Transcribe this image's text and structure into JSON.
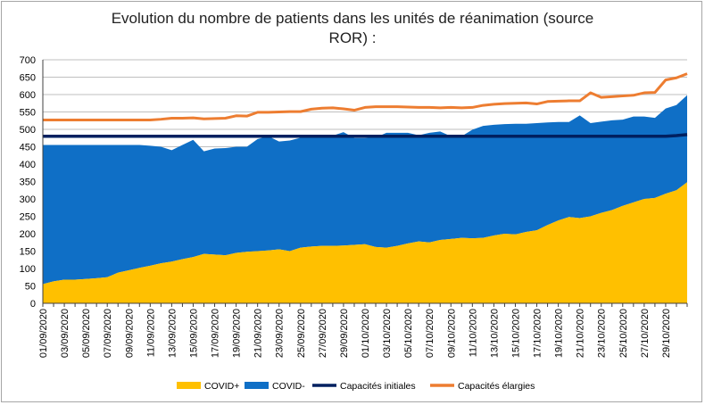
{
  "title_lines": [
    "Evolution du nombre de patients dans les unités de réanimation (source",
    "ROR) :"
  ],
  "colors": {
    "covid_plus": "#FFC000",
    "covid_minus": "#0F6FC6",
    "capacites_initiales": "#002060",
    "capacites_elargies": "#ED7D31",
    "grid": "#bfbfbf",
    "axis_text": "#000000"
  },
  "chart_data": {
    "type": "area",
    "title": "Evolution du nombre de patients dans les unités de réanimation (source ROR) :",
    "xlabel": "",
    "ylabel": "",
    "ylim": [
      0,
      700
    ],
    "yticks": [
      0,
      50,
      100,
      150,
      200,
      250,
      300,
      350,
      400,
      450,
      500,
      550,
      600,
      650,
      700
    ],
    "grid": true,
    "legend_position": "bottom",
    "x": [
      "01/09/2020",
      "02/09/2020",
      "03/09/2020",
      "04/09/2020",
      "05/09/2020",
      "06/09/2020",
      "07/09/2020",
      "08/09/2020",
      "09/09/2020",
      "10/09/2020",
      "11/09/2020",
      "12/09/2020",
      "13/09/2020",
      "14/09/2020",
      "15/09/2020",
      "16/09/2020",
      "17/09/2020",
      "18/09/2020",
      "19/09/2020",
      "20/09/2020",
      "21/09/2020",
      "22/09/2020",
      "23/09/2020",
      "24/09/2020",
      "25/09/2020",
      "26/09/2020",
      "27/09/2020",
      "28/09/2020",
      "29/09/2020",
      "30/09/2020",
      "01/10/2020",
      "02/10/2020",
      "03/10/2020",
      "04/10/2020",
      "05/10/2020",
      "06/10/2020",
      "07/10/2020",
      "08/10/2020",
      "09/10/2020",
      "10/10/2020",
      "11/10/2020",
      "12/10/2020",
      "13/10/2020",
      "14/10/2020",
      "15/10/2020",
      "16/10/2020",
      "17/10/2020",
      "18/10/2020",
      "19/10/2020",
      "20/10/2020",
      "21/10/2020",
      "22/10/2020",
      "23/10/2020",
      "24/10/2020",
      "25/10/2020",
      "26/10/2020",
      "27/10/2020",
      "28/10/2020",
      "29/10/2020",
      "30/10/2020",
      "31/10/2020"
    ],
    "x_tick_labels": [
      "01/09/2020",
      "03/09/2020",
      "05/09/2020",
      "07/09/2020",
      "09/09/2020",
      "11/09/2020",
      "13/09/2020",
      "15/09/2020",
      "17/09/2020",
      "19/09/2020",
      "21/09/2020",
      "23/09/2020",
      "25/09/2020",
      "27/09/2020",
      "29/09/2020",
      "01/10/2020",
      "03/10/2020",
      "05/10/2020",
      "07/10/2020",
      "09/10/2020",
      "11/10/2020",
      "13/10/2020",
      "15/10/2020",
      "17/10/2020",
      "19/10/2020",
      "21/10/2020",
      "23/10/2020",
      "25/10/2020",
      "27/10/2020",
      "29/10/2020"
    ],
    "series": [
      {
        "name": "COVID+",
        "kind": "stacked-area",
        "color": "#FFC000",
        "values": [
          55,
          63,
          68,
          68,
          70,
          72,
          75,
          88,
          95,
          102,
          108,
          115,
          120,
          127,
          133,
          142,
          140,
          138,
          145,
          148,
          150,
          152,
          155,
          150,
          160,
          163,
          165,
          165,
          166,
          168,
          170,
          162,
          160,
          165,
          172,
          178,
          175,
          182,
          185,
          188,
          187,
          188,
          195,
          200,
          198,
          205,
          210,
          225,
          238,
          248,
          245,
          250,
          260,
          268,
          280,
          290,
          300,
          303,
          315,
          325,
          348
        ]
      },
      {
        "name": "COVID-",
        "kind": "stacked-area",
        "color": "#0F6FC6",
        "values": [
          400,
          392,
          387,
          387,
          385,
          383,
          380,
          367,
          360,
          353,
          345,
          335,
          320,
          328,
          337,
          295,
          305,
          308,
          305,
          302,
          322,
          328,
          310,
          318,
          316,
          315,
          315,
          317,
          326,
          307,
          305,
          315,
          330,
          325,
          318,
          305,
          315,
          312,
          295,
          292,
          312,
          322,
          318,
          315,
          318,
          311,
          308,
          295,
          283,
          273,
          295,
          268,
          262,
          258,
          248,
          247,
          237,
          230,
          245,
          245,
          250
        ]
      },
      {
        "name": "Capacités initiales",
        "kind": "line",
        "color": "#002060",
        "values": [
          480,
          480,
          480,
          480,
          480,
          480,
          480,
          480,
          480,
          480,
          480,
          480,
          480,
          480,
          480,
          480,
          480,
          480,
          480,
          480,
          480,
          480,
          480,
          480,
          480,
          480,
          480,
          480,
          480,
          480,
          480,
          480,
          480,
          480,
          480,
          480,
          480,
          480,
          480,
          480,
          480,
          480,
          480,
          480,
          480,
          480,
          480,
          480,
          480,
          480,
          480,
          480,
          480,
          480,
          480,
          480,
          480,
          480,
          480,
          482,
          485
        ]
      },
      {
        "name": "Capacités élargies",
        "kind": "line",
        "color": "#ED7D31",
        "values": [
          527,
          527,
          527,
          527,
          527,
          527,
          527,
          527,
          527,
          527,
          527,
          529,
          532,
          532,
          533,
          530,
          531,
          532,
          539,
          538,
          549,
          549,
          550,
          551,
          551,
          558,
          561,
          562,
          559,
          555,
          563,
          565,
          565,
          565,
          564,
          563,
          563,
          562,
          563,
          562,
          563,
          569,
          572,
          574,
          575,
          576,
          573,
          580,
          581,
          582,
          582,
          605,
          592,
          594,
          596,
          598,
          605,
          606,
          642,
          648,
          660
        ]
      }
    ]
  }
}
